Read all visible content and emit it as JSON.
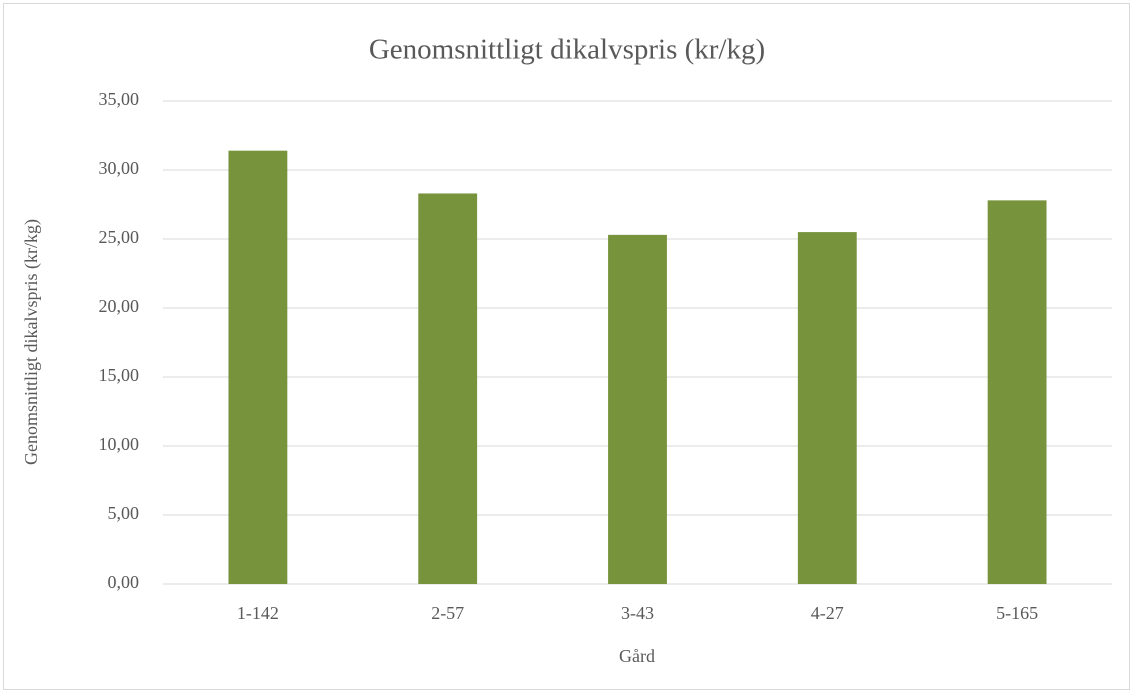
{
  "chart_data": {
    "type": "bar",
    "title": "Genomsnittligt dikalvspris (kr/kg)",
    "x_label": "Gård",
    "y_label": "Genomsnittligt dikalvspris (kr/kg)",
    "categories": [
      "1-142",
      "2-57",
      "3-43",
      "4-27",
      "5-165"
    ],
    "values": [
      31.4,
      28.3,
      25.3,
      25.5,
      27.8
    ],
    "color": "#77933c",
    "ylim": [
      0,
      35
    ],
    "yticks": [
      {
        "value": 0,
        "label": "0,00"
      },
      {
        "value": 5,
        "label": "5,00"
      },
      {
        "value": 10,
        "label": "10,00"
      },
      {
        "value": 15,
        "label": "15,00"
      },
      {
        "value": 20,
        "label": "20,00"
      },
      {
        "value": 25,
        "label": "25,00"
      },
      {
        "value": 30,
        "label": "30,00"
      },
      {
        "value": 35,
        "label": "35,00"
      }
    ],
    "grid": true
  }
}
